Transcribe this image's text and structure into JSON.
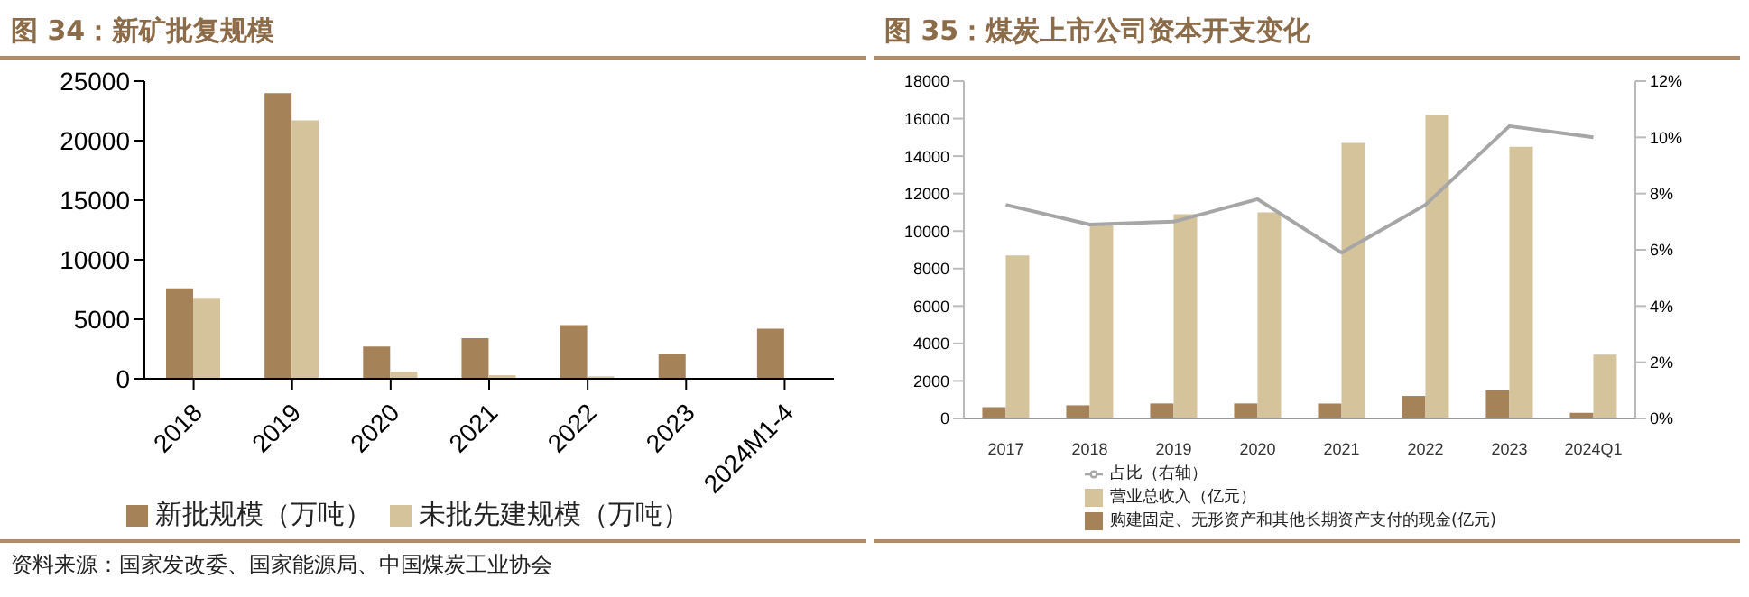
{
  "chart_data": [
    {
      "type": "bar",
      "title": "图 34：新矿批复规模",
      "categories": [
        "2018",
        "2019",
        "2020",
        "2021",
        "2022",
        "2023",
        "2024M1-4"
      ],
      "series": [
        {
          "name": "新批规模（万吨）",
          "color": "#a68258",
          "values": [
            7600,
            24000,
            2700,
            3400,
            4500,
            2100,
            4200
          ]
        },
        {
          "name": "未批先建规模（万吨）",
          "color": "#d5c49b",
          "values": [
            6800,
            21700,
            600,
            300,
            200,
            null,
            null
          ]
        }
      ],
      "ylim": [
        0,
        25000
      ],
      "yticks": [
        0,
        5000,
        10000,
        15000,
        20000,
        25000
      ],
      "legend": "bottom",
      "annotations": [
        "资料来源：国家发改委、国家能源局、中国煤炭工业协会"
      ]
    },
    {
      "type": "bar",
      "title": "图 35：煤炭上市公司资本开支变化",
      "categories": [
        "2017",
        "2018",
        "2019",
        "2020",
        "2021",
        "2022",
        "2023",
        "2024Q1"
      ],
      "series": [
        {
          "name": "购建固定、无形资产和其他长期资产支付的现金(亿元)",
          "color": "#a68258",
          "values": [
            600,
            700,
            800,
            800,
            800,
            1200,
            1500,
            300
          ]
        },
        {
          "name": "营业总收入（亿元）",
          "color": "#d5c49b",
          "values": [
            8700,
            10300,
            10900,
            11000,
            14700,
            16200,
            14500,
            3400
          ]
        },
        {
          "name": "占比（右轴）",
          "color": "#a6a6a6",
          "type": "line",
          "axis": "y2",
          "values": [
            7.6,
            6.9,
            7.0,
            7.8,
            5.9,
            7.6,
            10.4,
            10.0
          ]
        }
      ],
      "ylim": [
        0,
        18000
      ],
      "yticks": [
        0,
        2000,
        4000,
        6000,
        8000,
        10000,
        12000,
        14000,
        16000,
        18000
      ],
      "y2lim": [
        0,
        12
      ],
      "y2ticks": [
        {
          "value": 0,
          "label": "0%"
        },
        {
          "value": 2,
          "label": "2%"
        },
        {
          "value": 4,
          "label": "4%"
        },
        {
          "value": 6,
          "label": "6%"
        },
        {
          "value": 8,
          "label": "8%"
        },
        {
          "value": 10,
          "label": "10%"
        },
        {
          "value": 12,
          "label": "12%"
        }
      ],
      "legend": "bottom",
      "marker": "none"
    }
  ]
}
